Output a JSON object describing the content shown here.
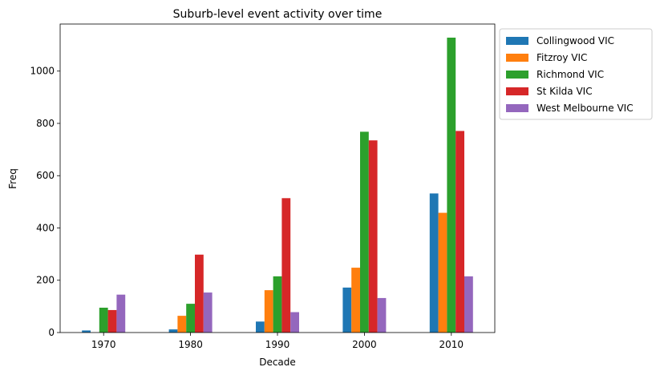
{
  "chart_data": {
    "type": "bar",
    "title": "Suburb-level event activity over time",
    "xlabel": "Decade",
    "ylabel": "Freq",
    "categories": [
      "1970",
      "1980",
      "1990",
      "2000",
      "2010"
    ],
    "ylim": [
      0,
      1180
    ],
    "yticks": [
      0,
      200,
      400,
      600,
      800,
      1000
    ],
    "grid": false,
    "legend_position": "outside-top-right",
    "series": [
      {
        "name": "Collingwood VIC",
        "color": "#1f77b4",
        "values": [
          8,
          12,
          42,
          172,
          532
        ]
      },
      {
        "name": "Fitzroy VIC",
        "color": "#ff7f0e",
        "values": [
          0,
          64,
          162,
          248,
          458
        ]
      },
      {
        "name": "Richmond VIC",
        "color": "#2ca02c",
        "values": [
          95,
          110,
          215,
          768,
          1128
        ]
      },
      {
        "name": "St Kilda VIC",
        "color": "#d62728",
        "values": [
          86,
          298,
          514,
          735,
          771
        ]
      },
      {
        "name": "West Melbourne VIC",
        "color": "#9467bd",
        "values": [
          145,
          153,
          78,
          132,
          215
        ]
      }
    ]
  }
}
